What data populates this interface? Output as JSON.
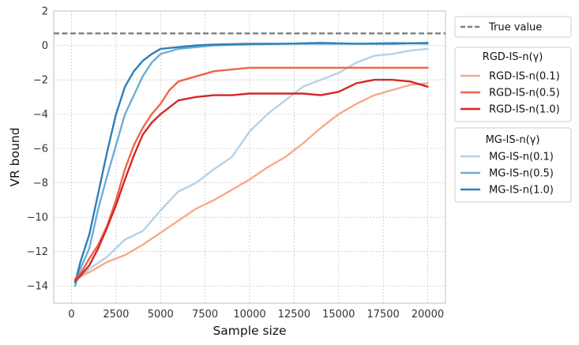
{
  "chart_data": {
    "type": "line",
    "xlabel": "Sample size",
    "ylabel": "VR bound",
    "xlim": [
      -1000,
      21000
    ],
    "ylim": [
      -15,
      2
    ],
    "xticks": [
      0,
      2500,
      5000,
      7500,
      10000,
      12500,
      15000,
      17500,
      20000
    ],
    "yticks": [
      -14,
      -12,
      -10,
      -8,
      -6,
      -4,
      -2,
      0,
      2
    ],
    "grid": true,
    "legend_placement": "outside right",
    "true_value": {
      "name": "True value",
      "y": 0.7,
      "color": "#7f7f7f"
    },
    "legend_groups": [
      {
        "title": "RGD-IS-n(γ)",
        "series": [
          "RGD-IS-n(0.1)",
          "RGD-IS-n(0.5)",
          "RGD-IS-n(1.0)"
        ]
      },
      {
        "title": "MG-IS-n(γ)",
        "series": [
          "MG-IS-n(0.1)",
          "MG-IS-n(0.5)",
          "MG-IS-n(1.0)"
        ]
      }
    ],
    "series": [
      {
        "name": "MG-IS-n(0.1)",
        "color": "#b3d2e7",
        "x": [
          200,
          1000,
          2000,
          3000,
          4000,
          5000,
          6000,
          7000,
          8000,
          9000,
          10000,
          11000,
          12000,
          13000,
          14000,
          15000,
          16000,
          17000,
          18000,
          19000,
          20000
        ],
        "y": [
          -13.8,
          -13.0,
          -12.3,
          -11.3,
          -10.8,
          -9.6,
          -8.5,
          -8.0,
          -7.2,
          -6.5,
          -5.0,
          -4.0,
          -3.2,
          -2.4,
          -2.0,
          -1.6,
          -1.0,
          -0.6,
          -0.5,
          -0.3,
          -0.2
        ]
      },
      {
        "name": "MG-IS-n(0.5)",
        "color": "#6baed6",
        "x": [
          200,
          500,
          1000,
          1500,
          2000,
          2500,
          3000,
          3500,
          4000,
          4500,
          5000,
          6000,
          7000,
          8000,
          10000,
          12000,
          14000,
          16000,
          18000,
          20000
        ],
        "y": [
          -14.0,
          -13.0,
          -11.8,
          -9.5,
          -7.6,
          -5.8,
          -4.0,
          -2.9,
          -1.8,
          -1.0,
          -0.5,
          -0.2,
          -0.1,
          0.0,
          0.05,
          0.1,
          0.1,
          0.1,
          0.15,
          0.1
        ]
      },
      {
        "name": "MG-IS-n(1.0)",
        "color": "#2f7eb9",
        "x": [
          200,
          500,
          1000,
          1500,
          2000,
          2500,
          3000,
          3500,
          4000,
          4500,
          5000,
          6000,
          7000,
          8000,
          10000,
          12000,
          14000,
          16000,
          18000,
          20000
        ],
        "y": [
          -13.8,
          -12.6,
          -11.0,
          -8.6,
          -6.2,
          -4.0,
          -2.4,
          -1.5,
          -0.9,
          -0.5,
          -0.2,
          -0.1,
          0.0,
          0.05,
          0.1,
          0.1,
          0.15,
          0.1,
          0.1,
          0.15
        ]
      },
      {
        "name": "RGD-IS-n(0.1)",
        "color": "#f8a98a",
        "x": [
          200,
          1000,
          2000,
          3000,
          4000,
          5000,
          6000,
          7000,
          8000,
          9000,
          10000,
          11000,
          12000,
          13000,
          14000,
          15000,
          16000,
          17000,
          18000,
          19000,
          20000
        ],
        "y": [
          -13.6,
          -13.2,
          -12.6,
          -12.2,
          -11.6,
          -10.9,
          -10.2,
          -9.5,
          -9.0,
          -8.4,
          -7.8,
          -7.1,
          -6.5,
          -5.7,
          -4.8,
          -4.0,
          -3.4,
          -2.9,
          -2.6,
          -2.3,
          -2.2
        ]
      },
      {
        "name": "RGD-IS-n(0.5)",
        "color": "#ef6548",
        "x": [
          200,
          500,
          1000,
          1500,
          2000,
          2500,
          3000,
          3500,
          4000,
          4500,
          5000,
          5500,
          6000,
          7000,
          8000,
          10000,
          12000,
          14000,
          16000,
          18000,
          20000
        ],
        "y": [
          -13.6,
          -13.3,
          -12.4,
          -11.6,
          -10.5,
          -9.0,
          -7.2,
          -5.8,
          -4.8,
          -4.0,
          -3.4,
          -2.6,
          -2.1,
          -1.8,
          -1.5,
          -1.3,
          -1.3,
          -1.3,
          -1.3,
          -1.3,
          -1.3
        ]
      },
      {
        "name": "RGD-IS-n(1.0)",
        "color": "#d62728",
        "x": [
          200,
          500,
          1000,
          1500,
          2000,
          2500,
          3000,
          3500,
          4000,
          4500,
          5000,
          5500,
          6000,
          7000,
          8000,
          9000,
          10000,
          11000,
          12000,
          13000,
          14000,
          15000,
          16000,
          17000,
          18000,
          19000,
          20000
        ],
        "y": [
          -13.7,
          -13.4,
          -12.8,
          -11.8,
          -10.6,
          -9.3,
          -7.8,
          -6.4,
          -5.2,
          -4.5,
          -4.0,
          -3.6,
          -3.2,
          -3.0,
          -2.9,
          -2.9,
          -2.8,
          -2.8,
          -2.8,
          -2.8,
          -2.9,
          -2.7,
          -2.2,
          -2.0,
          -2.0,
          -2.1,
          -2.4
        ]
      }
    ]
  }
}
